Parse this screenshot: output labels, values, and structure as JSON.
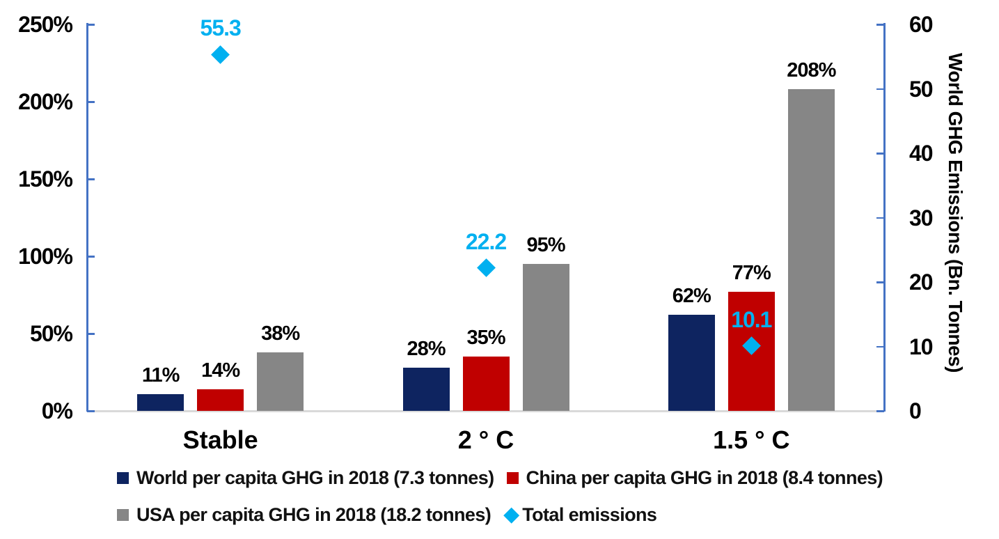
{
  "chart_data": {
    "type": "bar",
    "title": "",
    "categories": [
      "Stable",
      "2 ° C",
      "1.5 ° C"
    ],
    "series": [
      {
        "name": "World per capita GHG in 2018 (7.3 tonnes)",
        "color": "#0E2460",
        "axis": "left",
        "values": [
          11,
          28,
          62
        ],
        "value_labels": [
          "11%",
          "28%",
          "62%"
        ]
      },
      {
        "name": "China per capita GHG in 2018 (8.4 tonnes)",
        "color": "#C00000",
        "axis": "left",
        "values": [
          14,
          35,
          77
        ],
        "value_labels": [
          "14%",
          "35%",
          "77%"
        ]
      },
      {
        "name": "USA per capita GHG in 2018 (18.2 tonnes)",
        "color": "#868686",
        "axis": "left",
        "values": [
          38,
          95,
          208
        ],
        "value_labels": [
          "38%",
          "95%",
          "208%"
        ]
      }
    ],
    "scatter_series": {
      "name": "Total emissions",
      "marker": "diamond",
      "color": "#00B0F0",
      "axis": "right",
      "values": [
        55.3,
        22.2,
        10.1
      ],
      "value_labels": [
        "55.3",
        "22.2",
        "10.1"
      ]
    },
    "left_axis": {
      "min": 0,
      "max": 250,
      "tick_step": 50,
      "tick_labels": [
        "0%",
        "50%",
        "100%",
        "150%",
        "200%",
        "250%"
      ],
      "line_color": "#4472C4"
    },
    "right_axis": {
      "min": 0,
      "max": 60,
      "tick_step": 10,
      "tick_labels": [
        "0",
        "10",
        "20",
        "30",
        "40",
        "50",
        "60"
      ],
      "title": "World GHG Emissions (Bn. Tonnes)",
      "line_color": "#4472C4"
    },
    "baseline_color": "#D9D9D9",
    "grid": false,
    "legend_position": "bottom",
    "legend_rows": [
      [
        {
          "marker": "square",
          "color": "#0E2460",
          "label": "World per capita GHG in 2018 (7.3 tonnes)"
        },
        {
          "marker": "square",
          "color": "#C00000",
          "label": "China per capita GHG in 2018 (8.4 tonnes)"
        }
      ],
      [
        {
          "marker": "square",
          "color": "#868686",
          "label": "USA per capita GHG in 2018 (18.2 tonnes)"
        },
        {
          "marker": "diamond",
          "color": "#00B0F0",
          "label": "Total emissions"
        }
      ]
    ]
  }
}
